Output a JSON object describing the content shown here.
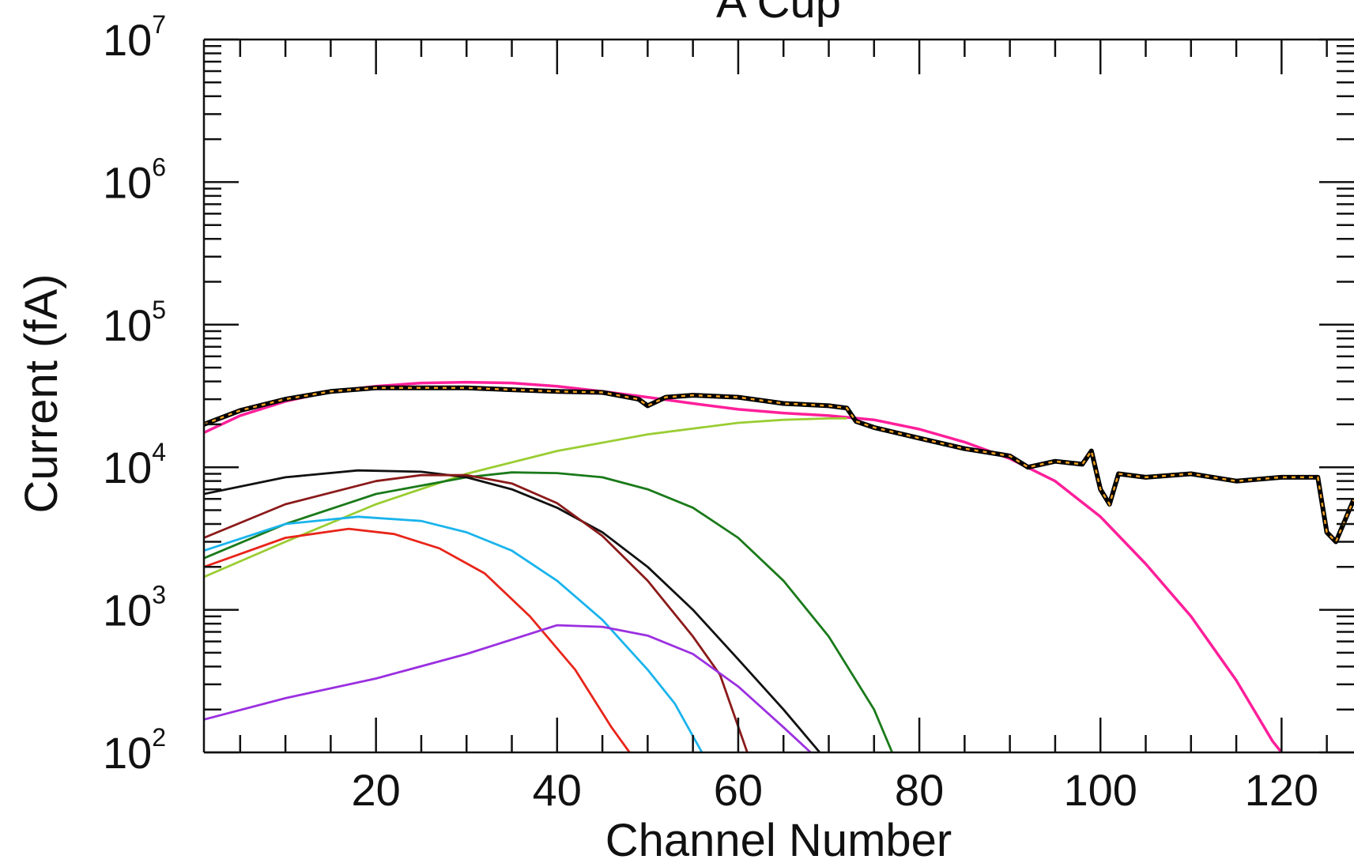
{
  "chart_data": {
    "type": "line",
    "title": "A Cup",
    "xlabel": "Channel Number",
    "ylabel": "Current (fA)",
    "xlim": [
      1,
      128
    ],
    "ylim": [
      100,
      10000000
    ],
    "y_scale": "log",
    "grid": false,
    "legend": "none",
    "x_ticks": [
      20,
      40,
      60,
      80,
      100,
      120
    ],
    "x_tick_labels": [
      "20",
      "40",
      "60",
      "80",
      "100",
      "120"
    ],
    "y_ticks": [
      100,
      1000,
      10000,
      100000,
      1000000,
      10000000
    ],
    "y_tick_labels": [
      {
        "base": "10",
        "exp": "2"
      },
      {
        "base": "10",
        "exp": "3"
      },
      {
        "base": "10",
        "exp": "4"
      },
      {
        "base": "10",
        "exp": "5"
      },
      {
        "base": "10",
        "exp": "6"
      },
      {
        "base": "10",
        "exp": "7"
      }
    ],
    "measured": {
      "color": "#000000",
      "dash_color": "#f0a020",
      "x": [
        1,
        5,
        10,
        15,
        20,
        25,
        30,
        35,
        40,
        45,
        49,
        50,
        52,
        55,
        60,
        65,
        70,
        72,
        73,
        75,
        80,
        85,
        90,
        92,
        95,
        98,
        99,
        100,
        101,
        102,
        105,
        110,
        115,
        120,
        124,
        125,
        126,
        128
      ],
      "y": [
        20000,
        25000,
        30000,
        34000,
        36000,
        36000,
        36000,
        35000,
        34000,
        33500,
        30000,
        27000,
        31000,
        32000,
        31000,
        28000,
        27000,
        26000,
        21000,
        19000,
        16000,
        13500,
        12000,
        10000,
        11000,
        10500,
        13000,
        7000,
        5500,
        9000,
        8500,
        9000,
        8000,
        8500,
        8500,
        3500,
        3000,
        6000
      ]
    },
    "series": [
      {
        "color": "#ff1f9a",
        "x": [
          1,
          5,
          10,
          15,
          20,
          25,
          30,
          35,
          40,
          45,
          50,
          55,
          60,
          65,
          70,
          75,
          80,
          85,
          90,
          95,
          100,
          105,
          110,
          115,
          119,
          120
        ],
        "y": [
          17500,
          23000,
          29000,
          34000,
          37000,
          39000,
          39500,
          39000,
          37000,
          34000,
          31000,
          28000,
          25500,
          24000,
          23000,
          21500,
          18500,
          15000,
          11500,
          8000,
          4500,
          2100,
          900,
          320,
          120,
          100
        ]
      },
      {
        "color": "#9acd32",
        "x": [
          1,
          10,
          20,
          30,
          40,
          50,
          60,
          65,
          70,
          72
        ],
        "y": [
          1700,
          3000,
          5500,
          9000,
          13000,
          17000,
          20500,
          21500,
          22000,
          22000
        ]
      },
      {
        "color": "#1a7a1a",
        "x": [
          1,
          10,
          20,
          30,
          35,
          40,
          45,
          50,
          55,
          60,
          65,
          70,
          75,
          77
        ],
        "y": [
          2300,
          4000,
          6500,
          8500,
          9200,
          9100,
          8500,
          7000,
          5200,
          3200,
          1600,
          650,
          200,
          100
        ]
      },
      {
        "color": "#111111",
        "x": [
          1,
          10,
          18,
          25,
          30,
          35,
          40,
          45,
          50,
          55,
          60,
          65,
          69
        ],
        "y": [
          6500,
          8500,
          9500,
          9300,
          8500,
          7000,
          5200,
          3500,
          2000,
          1000,
          450,
          200,
          100
        ]
      },
      {
        "color": "#8b1a1a",
        "x": [
          1,
          10,
          20,
          25,
          30,
          35,
          40,
          45,
          50,
          55,
          58,
          61
        ],
        "y": [
          3200,
          5500,
          8000,
          8800,
          8800,
          7700,
          5600,
          3300,
          1600,
          650,
          350,
          100
        ]
      },
      {
        "color": "#1ab4ec",
        "x": [
          1,
          10,
          18,
          25,
          30,
          35,
          40,
          45,
          50,
          53,
          56
        ],
        "y": [
          2600,
          4000,
          4500,
          4200,
          3500,
          2600,
          1600,
          850,
          380,
          220,
          100
        ]
      },
      {
        "color": "#e8251a",
        "x": [
          1,
          10,
          17,
          22,
          27,
          32,
          37,
          42,
          46,
          48
        ],
        "y": [
          2000,
          3200,
          3700,
          3400,
          2700,
          1800,
          900,
          380,
          150,
          100
        ]
      },
      {
        "color": "#9b30e0",
        "x": [
          1,
          10,
          20,
          30,
          40,
          45,
          50,
          55,
          60,
          65,
          68
        ],
        "y": [
          170,
          240,
          330,
          490,
          780,
          760,
          660,
          490,
          290,
          150,
          100
        ]
      }
    ]
  }
}
